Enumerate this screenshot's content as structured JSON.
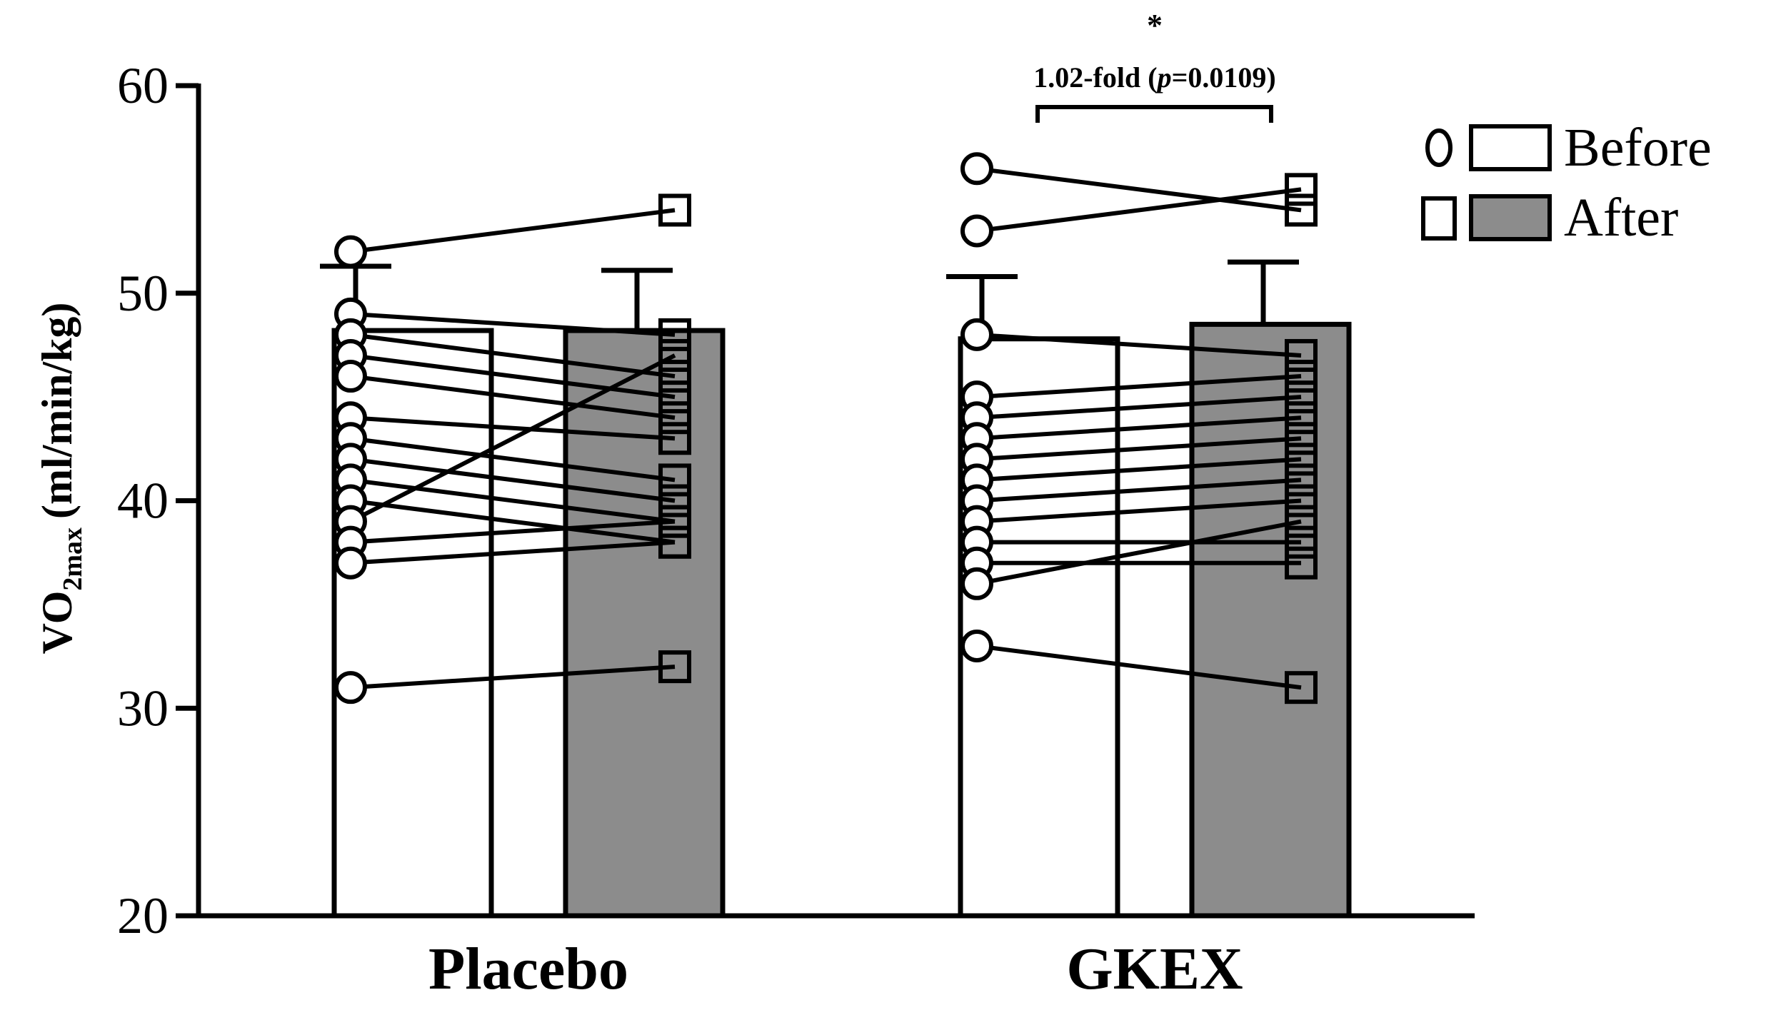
{
  "chart_data": {
    "type": "bar",
    "ylabel_main": "VO",
    "ylabel_sub": "2max",
    "ylabel_unit": "(ml/min/kg)",
    "ylim": [
      20,
      60
    ],
    "yticks": [
      "20",
      "30",
      "40",
      "50",
      "60"
    ],
    "categories": [
      "Placebo",
      "GKEX"
    ],
    "series": [
      {
        "name": "Before",
        "marker": "circle",
        "fill": "#ffffff",
        "values": [
          48.2,
          47.8
        ],
        "errors": [
          3.1,
          3.0
        ]
      },
      {
        "name": "After",
        "marker": "square",
        "fill": "#8c8c8c",
        "values": [
          48.2,
          48.5
        ],
        "errors": [
          2.9,
          3.0
        ]
      }
    ],
    "individual_points": {
      "Placebo": {
        "before": [
          52,
          49,
          48,
          47,
          46,
          44,
          43,
          42,
          41,
          40,
          39,
          38,
          37,
          31
        ],
        "after": [
          54,
          48,
          46,
          45,
          44,
          43,
          41,
          40,
          39,
          38,
          47,
          39,
          38,
          32
        ]
      },
      "GKEX": {
        "before": [
          56,
          53,
          48,
          45,
          44,
          43,
          42,
          41,
          40,
          39,
          38,
          37,
          36,
          33
        ],
        "after": [
          54,
          55,
          47,
          46,
          45,
          44,
          43,
          42,
          41,
          40,
          38,
          37,
          39,
          31
        ]
      }
    },
    "annotation": {
      "star": "*",
      "fold_text": "1.02-fold (",
      "p_symbol": "p",
      "p_value": "=0.0109)"
    },
    "legend": {
      "position": "top-right",
      "items": [
        "Before",
        "After"
      ]
    },
    "grid": false
  }
}
